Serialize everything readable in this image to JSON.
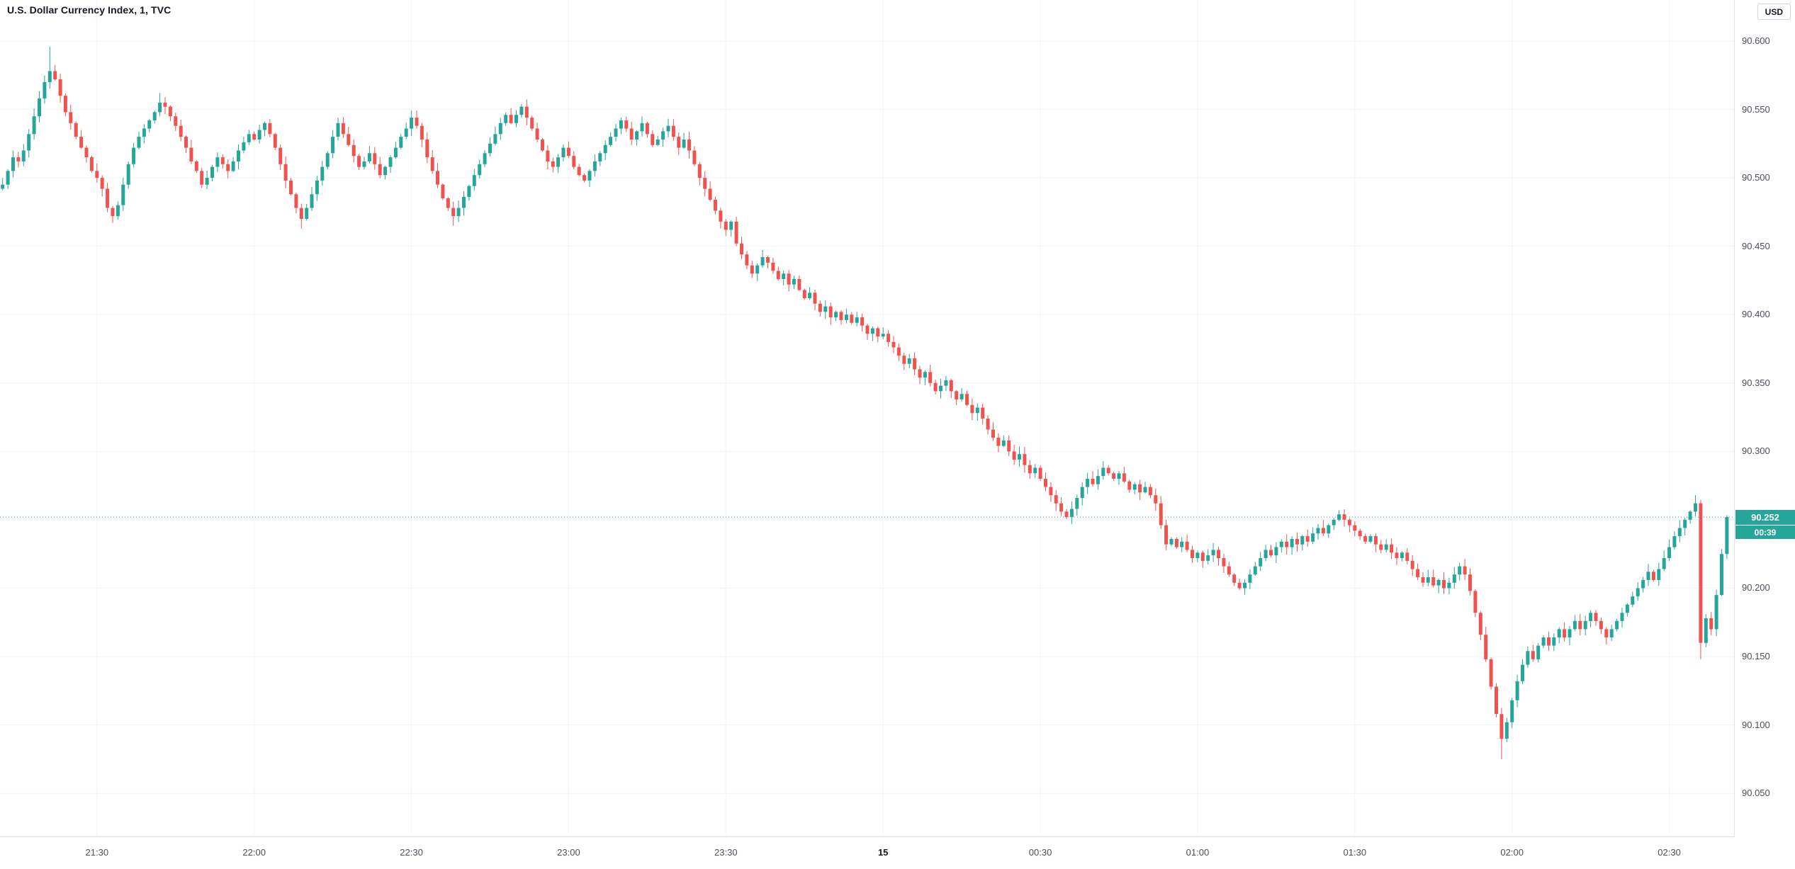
{
  "header": {
    "title": "U.S. Dollar Currency Index, 1, TVC",
    "currency_button": "USD"
  },
  "price_axis": {
    "ticks": [
      "90.600",
      "90.550",
      "90.500",
      "90.450",
      "90.400",
      "90.350",
      "90.300",
      "90.250",
      "90.200",
      "90.150",
      "90.100",
      "90.050"
    ],
    "last_price_label": "90.252",
    "countdown_label": "00:39"
  },
  "time_axis": {
    "labels": [
      {
        "text": "21:30",
        "index": 18,
        "bold": false
      },
      {
        "text": "22:00",
        "index": 48,
        "bold": false
      },
      {
        "text": "22:30",
        "index": 78,
        "bold": false
      },
      {
        "text": "23:00",
        "index": 108,
        "bold": false
      },
      {
        "text": "23:30",
        "index": 138,
        "bold": false
      },
      {
        "text": "15",
        "index": 168,
        "bold": true
      },
      {
        "text": "00:30",
        "index": 198,
        "bold": false
      },
      {
        "text": "01:00",
        "index": 228,
        "bold": false
      },
      {
        "text": "01:30",
        "index": 258,
        "bold": false
      },
      {
        "text": "02:00",
        "index": 288,
        "bold": false
      },
      {
        "text": "02:30",
        "index": 318,
        "bold": false
      }
    ]
  },
  "chart_data": {
    "type": "candlestick",
    "title": "U.S. Dollar Currency Index, 1, TVC",
    "symbol": "U.S. Dollar Currency Index",
    "interval": "1",
    "exchange": "TVC",
    "currency": "USD",
    "last_price": 90.252,
    "bar_countdown": "00:39",
    "y_range": [
      90.018,
      90.63
    ],
    "price_tick_step": 0.05,
    "up_color": "#26a69a",
    "down_color": "#ef5350",
    "grid_color": "#f0f3fa",
    "first_open": 90.492,
    "closes": [
      90.495,
      90.505,
      90.515,
      90.512,
      90.52,
      90.532,
      90.545,
      90.558,
      90.57,
      90.578,
      90.572,
      90.56,
      90.548,
      90.54,
      90.53,
      90.522,
      90.515,
      90.505,
      90.5,
      90.492,
      90.478,
      90.472,
      90.48,
      90.495,
      90.51,
      90.522,
      90.53,
      90.536,
      90.542,
      90.548,
      90.555,
      90.552,
      90.545,
      90.538,
      90.53,
      90.522,
      90.512,
      90.505,
      90.495,
      90.5,
      90.508,
      90.515,
      90.51,
      90.505,
      90.512,
      90.52,
      90.526,
      90.532,
      90.528,
      90.535,
      90.54,
      90.532,
      90.522,
      90.51,
      90.498,
      90.488,
      90.478,
      90.47,
      90.478,
      90.488,
      90.498,
      90.508,
      90.518,
      90.53,
      90.54,
      90.532,
      90.524,
      90.516,
      90.508,
      90.512,
      90.518,
      90.51,
      90.502,
      90.508,
      90.515,
      90.522,
      90.53,
      90.536,
      90.544,
      90.538,
      90.528,
      90.515,
      90.505,
      90.495,
      90.485,
      90.478,
      90.472,
      90.478,
      90.486,
      90.494,
      90.502,
      90.51,
      90.518,
      90.525,
      90.532,
      90.54,
      90.546,
      90.54,
      90.546,
      90.552,
      90.544,
      90.536,
      90.528,
      90.52,
      90.512,
      90.508,
      90.515,
      90.522,
      90.516,
      90.508,
      90.502,
      90.498,
      90.505,
      90.512,
      90.518,
      90.524,
      90.53,
      90.536,
      90.542,
      90.536,
      90.528,
      90.534,
      90.54,
      90.532,
      90.524,
      90.528,
      90.534,
      90.538,
      90.53,
      90.522,
      90.528,
      90.52,
      90.51,
      90.5,
      90.492,
      90.484,
      90.476,
      90.468,
      90.462,
      90.468,
      90.452,
      90.444,
      90.436,
      90.43,
      90.436,
      90.442,
      90.438,
      90.432,
      90.426,
      90.43,
      90.422,
      90.426,
      90.418,
      90.412,
      90.416,
      90.408,
      90.402,
      90.406,
      90.398,
      90.402,
      90.396,
      90.4,
      90.394,
      90.398,
      90.392,
      90.386,
      90.39,
      90.384,
      90.386,
      90.38,
      90.376,
      90.37,
      90.364,
      90.368,
      90.36,
      90.354,
      90.358,
      90.35,
      90.344,
      90.348,
      90.352,
      90.344,
      90.338,
      90.342,
      90.334,
      90.328,
      90.332,
      90.324,
      90.316,
      90.31,
      90.304,
      90.308,
      90.3,
      90.294,
      90.298,
      90.29,
      90.284,
      90.288,
      90.28,
      90.274,
      90.268,
      90.262,
      90.256,
      90.252,
      90.258,
      90.266,
      90.274,
      90.28,
      90.276,
      90.282,
      90.288,
      90.284,
      90.28,
      90.284,
      90.278,
      90.272,
      90.276,
      90.27,
      90.274,
      90.268,
      90.262,
      90.246,
      90.232,
      90.236,
      90.23,
      90.234,
      90.228,
      90.222,
      90.226,
      90.22,
      90.224,
      90.228,
      90.222,
      90.216,
      90.21,
      90.204,
      90.2,
      90.204,
      90.21,
      90.216,
      90.222,
      90.228,
      90.224,
      90.23,
      90.234,
      90.23,
      90.236,
      90.232,
      90.238,
      90.234,
      90.24,
      90.244,
      90.24,
      90.246,
      90.25,
      90.254,
      90.25,
      90.246,
      90.242,
      90.238,
      90.234,
      90.238,
      90.232,
      90.228,
      90.232,
      90.226,
      90.222,
      90.226,
      90.22,
      90.214,
      90.208,
      90.204,
      90.208,
      90.202,
      90.206,
      90.2,
      90.204,
      90.21,
      90.216,
      90.21,
      90.198,
      90.182,
      90.166,
      90.148,
      90.128,
      90.108,
      90.09,
      90.102,
      90.118,
      90.132,
      90.144,
      90.154,
      90.148,
      90.158,
      90.164,
      90.158,
      90.164,
      90.17,
      90.164,
      90.17,
      90.176,
      90.17,
      90.176,
      90.182,
      90.176,
      90.17,
      90.164,
      90.17,
      90.176,
      90.182,
      90.188,
      90.194,
      90.2,
      90.206,
      90.212,
      90.206,
      90.214,
      90.222,
      90.23,
      90.238,
      90.244,
      90.25,
      90.256,
      90.262,
      90.16,
      90.178,
      90.17,
      90.195,
      90.225,
      90.252
    ],
    "wick_overrides": {
      "9": {
        "high": 90.596
      },
      "30": {
        "high": 90.562
      },
      "57": {
        "low": 90.463
      },
      "86": {
        "low": 90.465
      },
      "286": {
        "low": 90.075
      },
      "323": {
        "high": 90.268
      },
      "324": {
        "low": 90.148
      }
    }
  }
}
